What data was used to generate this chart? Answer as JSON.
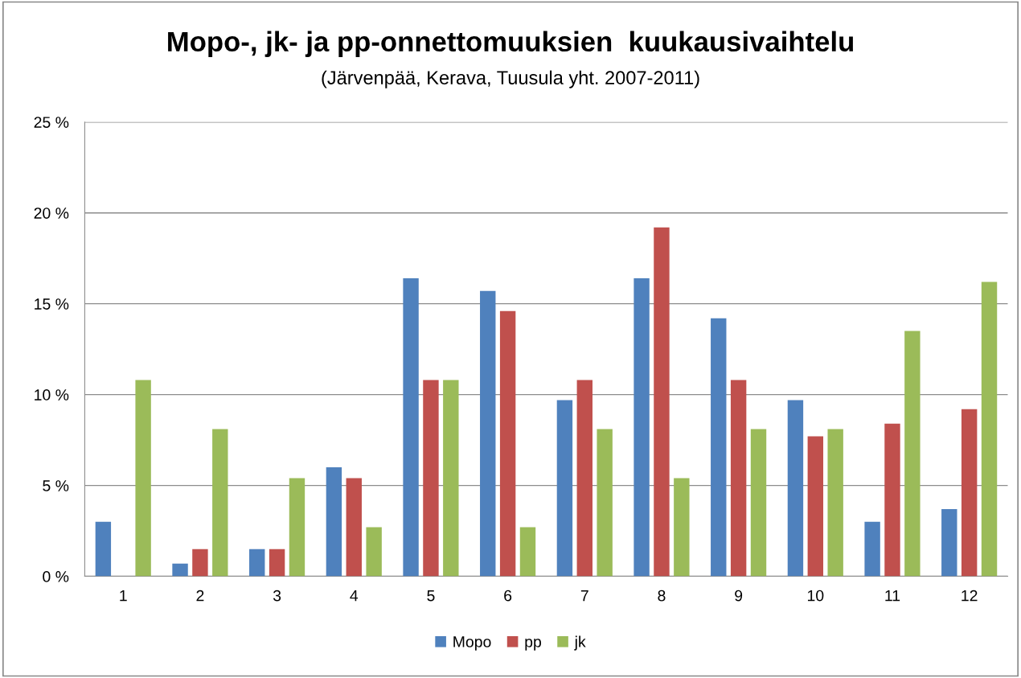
{
  "chart_data": {
    "type": "bar",
    "title": "Mopo-, jk- ja pp-onnettomuuksien  kuukausivaihtelu",
    "subtitle": "(Järvenpää, Kerava, Tuusula yht. 2007-2011)",
    "categories": [
      "1",
      "2",
      "3",
      "4",
      "5",
      "6",
      "7",
      "8",
      "9",
      "10",
      "11",
      "12"
    ],
    "series": [
      {
        "name": "Mopo",
        "color": "#4f81bd",
        "values": [
          3.0,
          0.7,
          1.5,
          6.0,
          16.4,
          15.7,
          9.7,
          16.4,
          14.2,
          9.7,
          3.0,
          3.7
        ]
      },
      {
        "name": "pp",
        "color": "#c0504d",
        "values": [
          0,
          1.5,
          1.5,
          5.4,
          10.8,
          14.6,
          10.8,
          19.2,
          10.8,
          7.7,
          8.4,
          9.2
        ]
      },
      {
        "name": "jk",
        "color": "#9bbb59",
        "values": [
          10.8,
          8.1,
          5.4,
          2.7,
          10.8,
          2.7,
          8.1,
          5.4,
          8.1,
          8.1,
          13.5,
          16.2
        ]
      }
    ],
    "ylim": [
      0,
      25
    ],
    "yticks": [
      {
        "value": 0,
        "label": "0 %"
      },
      {
        "value": 5,
        "label": "5 %"
      },
      {
        "value": 10,
        "label": "10 %"
      },
      {
        "value": 15,
        "label": "15 %"
      },
      {
        "value": 20,
        "label": "20 %"
      },
      {
        "value": 25,
        "label": "25 %"
      }
    ],
    "grid": "y",
    "legend": "bottom"
  }
}
